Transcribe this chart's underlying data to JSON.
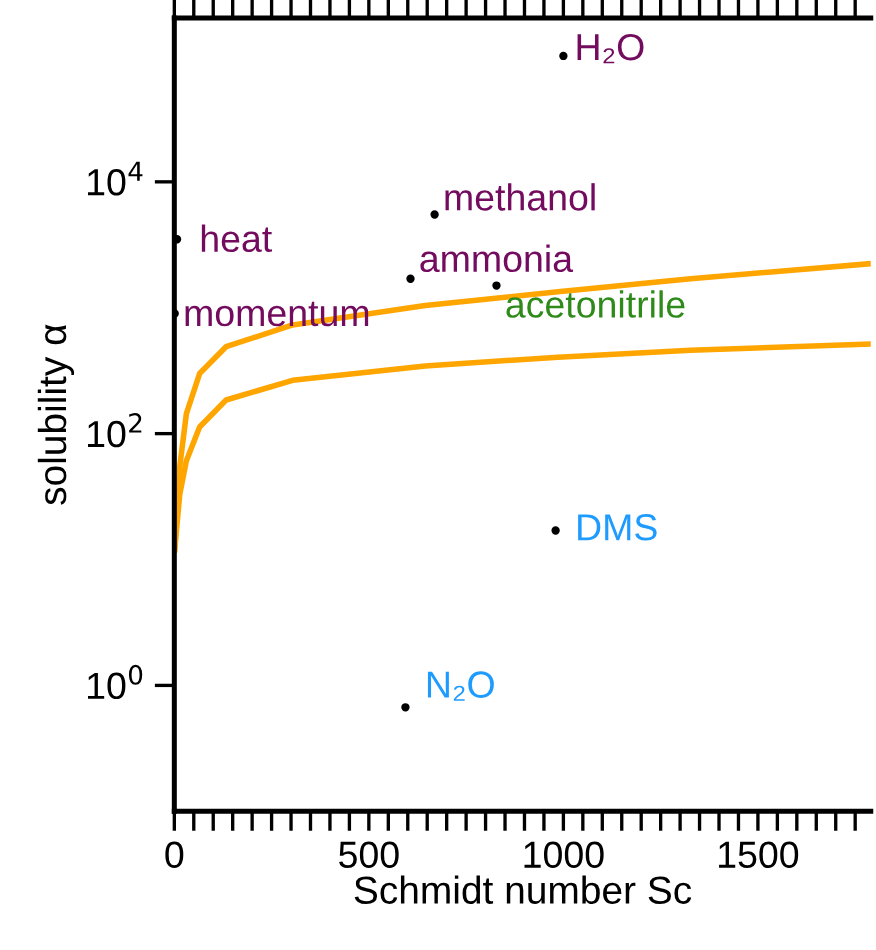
{
  "chart_data": {
    "type": "scatter",
    "xlabel": "Schmidt number Sc",
    "ylabel": "solubility α",
    "log": "y",
    "xlim": [
      0,
      1790
    ],
    "ylim": [
      0.1,
      200000
    ],
    "xticks": [
      0,
      {
        "value": 50,
        "label": null
      },
      {
        "value": 100,
        "label": null
      },
      {
        "value": 150,
        "label": null
      },
      {
        "value": 200,
        "label": null
      },
      {
        "value": 250,
        "label": null
      },
      {
        "value": 300,
        "label": null
      },
      {
        "value": 350,
        "label": null
      },
      {
        "value": 400,
        "label": null
      },
      {
        "value": 450,
        "label": null
      },
      500,
      {
        "value": 550,
        "label": null
      },
      {
        "value": 600,
        "label": null
      },
      {
        "value": 650,
        "label": null
      },
      {
        "value": 700,
        "label": null
      },
      {
        "value": 750,
        "label": null
      },
      {
        "value": 800,
        "label": null
      },
      {
        "value": 850,
        "label": null
      },
      {
        "value": 900,
        "label": null
      },
      {
        "value": 950,
        "label": null
      },
      1000,
      {
        "value": 1050,
        "label": null
      },
      {
        "value": 1100,
        "label": null
      },
      {
        "value": 1150,
        "label": null
      },
      {
        "value": 1200,
        "label": null
      },
      {
        "value": 1250,
        "label": null
      },
      {
        "value": 1300,
        "label": null
      },
      {
        "value": 1350,
        "label": null
      },
      {
        "value": 1400,
        "label": null
      },
      {
        "value": 1450,
        "label": null
      },
      1500,
      {
        "value": 1550,
        "label": null
      },
      {
        "value": 1600,
        "label": null
      },
      {
        "value": 1650,
        "label": null
      },
      {
        "value": 1700,
        "label": null
      },
      {
        "value": 1750,
        "label": null
      }
    ],
    "yticks": [
      {
        "value": 1,
        "label": "10$^{0}$"
      },
      {
        "value": 100,
        "label": "10$^{2}$"
      },
      {
        "value": 10000,
        "label": "10$^{4}$"
      }
    ],
    "grid": false,
    "legend": false,
    "series": [
      {
        "marker": "circle",
        "color": "#000000",
        "x": [
          1000,
          7,
          1,
          669,
          607,
          828,
          980,
          594
        ],
        "values": [
          100000,
          3500,
          900,
          5500,
          1700,
          1500,
          17,
          0.67
        ]
      },
      {
        "type": "line",
        "color": "#ffa500",
        "x": [
          1,
          14,
          31,
          65,
          133,
          304,
          645,
          986,
          1327,
          1790
        ],
        "values": [
          12,
          55,
          144,
          300,
          490,
          730,
          1040,
          1340,
          1700,
          2240
        ]
      },
      {
        "type": "line",
        "color": "#ffa500",
        "x": [
          1,
          14,
          31,
          65,
          133,
          304,
          645,
          986,
          1327,
          1790
        ],
        "values": [
          12,
          33,
          61,
          113,
          185,
          265,
          345,
          405,
          460,
          515
        ]
      }
    ],
    "annotations": [
      {
        "text": "H₂O",
        "x": 1000,
        "y": 100000
      },
      {
        "text": "heat",
        "x": 7,
        "y": 3500
      },
      {
        "text": "momentum",
        "x": 1,
        "y": 900
      },
      {
        "text": "methanol",
        "x": 669,
        "y": 5500
      },
      {
        "text": "ammonia",
        "x": 607,
        "y": 1700
      },
      {
        "text": "acetonitrile",
        "x": 828,
        "y": 1500
      },
      {
        "text": "DMS",
        "x": 980,
        "y": 17
      },
      {
        "text": "N₂O",
        "x": 594,
        "y": 0.67
      }
    ]
  }
}
